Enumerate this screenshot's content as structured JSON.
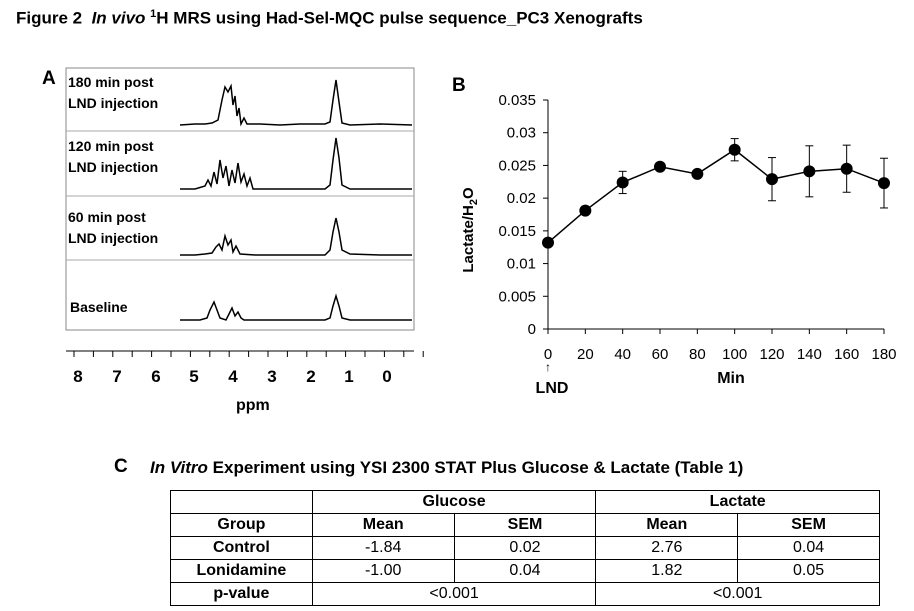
{
  "figure": {
    "prefix": "Figure 2",
    "italic": "In vivo",
    "sup": "1",
    "rest": "H MRS using Had-Sel-MQC  pulse sequence_PC3 Xenografts"
  },
  "panel_a": {
    "label": "A",
    "spectra": [
      {
        "line1": "180 min post",
        "line2": "LND injection"
      },
      {
        "line1": "120 min post",
        "line2": "LND injection"
      },
      {
        "line1": "60 min post",
        "line2": "LND injection"
      },
      {
        "line1": "Baseline",
        "line2": ""
      }
    ],
    "ppm_ticks": [
      "8",
      "7",
      "6",
      "5",
      "4",
      "3",
      "2",
      "1",
      "0"
    ],
    "xlabel": "ppm"
  },
  "panel_b": {
    "label": "B",
    "annotation": "LND",
    "arrow": "↑"
  },
  "chart_data": {
    "type": "line",
    "title": "",
    "xlabel": "Min",
    "ylabel_main": "Lactate/H",
    "ylabel_sub": "2",
    "ylabel_tail": "O",
    "x": [
      0,
      20,
      40,
      60,
      80,
      100,
      120,
      140,
      160,
      180
    ],
    "y": [
      0.0132,
      0.0181,
      0.0224,
      0.0248,
      0.0237,
      0.0274,
      0.0229,
      0.0241,
      0.0245,
      0.0223
    ],
    "error": [
      0.0,
      0.0006,
      0.0017,
      0.0,
      0.0,
      0.0017,
      0.0033,
      0.0039,
      0.0036,
      0.0038
    ],
    "xlim": [
      0,
      180
    ],
    "ylim": [
      0,
      0.035
    ],
    "xticks": [
      "0",
      "20",
      "40",
      "60",
      "80",
      "100",
      "120",
      "140",
      "160",
      "180"
    ],
    "yticks": [
      "0",
      "0.005",
      "0.01",
      "0.015",
      "0.02",
      "0.025",
      "0.03",
      "0.035"
    ],
    "grid": false
  },
  "panel_c": {
    "label": "C",
    "title_italic": "In Vitro",
    "title_rest": " Experiment using YSI 2300 STAT Plus Glucose & Lactate (Table 1)",
    "col_glucose": "Glucose",
    "col_lactate": "Lactate",
    "h_group": "Group",
    "h_mean": "Mean",
    "h_sem": "SEM",
    "rows": [
      {
        "group": "Control",
        "g_mean": "-1.84",
        "g_sem": "0.02",
        "l_mean": "2.76",
        "l_sem": "0.04"
      },
      {
        "group": "Lonidamine",
        "g_mean": "-1.00",
        "g_sem": "0.04",
        "l_mean": "1.82",
        "l_sem": "0.05"
      }
    ],
    "pvalue_label": "p-value",
    "pvalue_glucose": "<0.001",
    "pvalue_lactate": "<0.001"
  }
}
